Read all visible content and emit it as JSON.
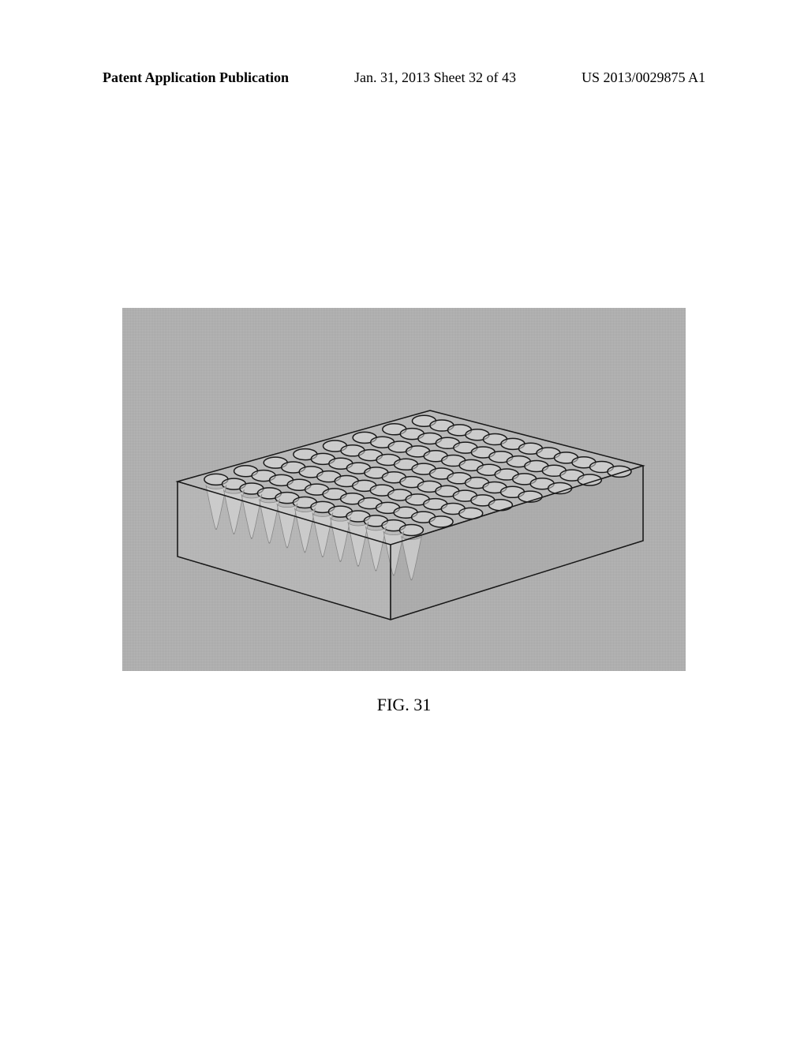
{
  "header": {
    "left": "Patent Application Publication",
    "center": "Jan. 31, 2013  Sheet 32 of 43",
    "right": "US 2013/0029875 A1"
  },
  "figure": {
    "caption": "FIG. 31",
    "background_color": "#b8b8b8",
    "well_plate": {
      "rows": 8,
      "cols": 12,
      "outline_color": "#1a1a1a",
      "well_color": "#404040",
      "cone_color": "#c8c8c8"
    }
  }
}
